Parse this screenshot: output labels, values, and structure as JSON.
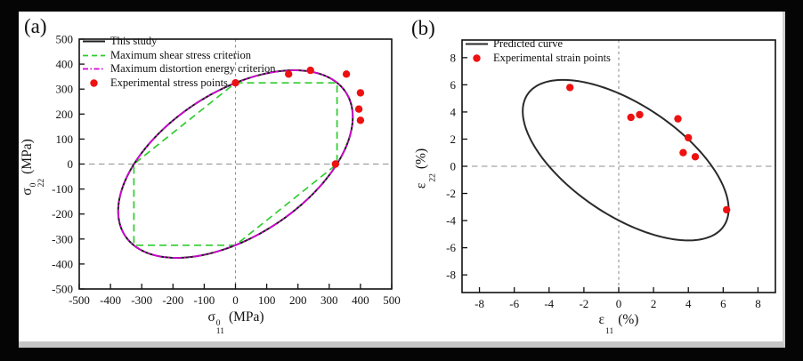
{
  "canvas": {
    "background": "#050505",
    "panel_background": "#ffffff"
  },
  "colors": {
    "axis": "#111111",
    "reference_line": "#8f8f8f",
    "this_study": "#1c1c1c",
    "shear_criterion": "#2ecc2e",
    "distortion_criterion": "#d800d8",
    "experimental_points": "#ee1111",
    "predicted_curve": "#2a2a2a"
  },
  "chart_data": [
    {
      "id": "a",
      "tag": "(a)",
      "type": "line",
      "xlabel": {
        "symbol": "σ",
        "sup": "0",
        "sub": "11",
        "unit": "(MPa)"
      },
      "ylabel": {
        "symbol": "σ",
        "sup": "0",
        "sub": "22",
        "unit": "(MPa)"
      },
      "xlim": [
        -500,
        500
      ],
      "ylim": [
        -500,
        500
      ],
      "xticks": [
        -500,
        -400,
        -300,
        -200,
        -100,
        0,
        100,
        200,
        300,
        400,
        500
      ],
      "yticks": [
        -500,
        -400,
        -300,
        -200,
        -100,
        0,
        100,
        200,
        300,
        400,
        500
      ],
      "grid": false,
      "reference_lines": {
        "vertical_x": 0,
        "horizontal_y": 0
      },
      "legend_position": "top-left-inside",
      "legend": [
        {
          "label": "This study",
          "swatch": "solid",
          "color": "#1c1c1c"
        },
        {
          "label": "Maximum shear stress criterion",
          "swatch": "dashed",
          "color": "#2ecc2e"
        },
        {
          "label": "Maximum distortion energy criterion",
          "swatch": "dashdot",
          "color": "#d800d8"
        },
        {
          "label": "Experimental stress points",
          "swatch": "marker",
          "color": "#ee1111"
        }
      ],
      "series": [
        {
          "name": "Maximum shear stress criterion",
          "type": "polygon",
          "style": "dashed",
          "color": "#2ecc2e",
          "points": [
            [
              0,
              325
            ],
            [
              325,
              325
            ],
            [
              325,
              0
            ],
            [
              0,
              -325
            ],
            [
              -325,
              -325
            ],
            [
              -325,
              0
            ]
          ]
        },
        {
          "name": "This study",
          "type": "ellipse",
          "style": "solid",
          "color": "#1c1c1c",
          "center": [
            0,
            0
          ],
          "semi_major": 460,
          "semi_minor": 265,
          "angle_deg": 45
        },
        {
          "name": "Maximum distortion energy criterion",
          "type": "ellipse",
          "style": "dashdot",
          "color": "#d800d8",
          "center": [
            0,
            0
          ],
          "semi_major": 460,
          "semi_minor": 265,
          "angle_deg": 45
        },
        {
          "name": "Experimental stress points",
          "type": "scatter",
          "style": "marker",
          "color": "#ee1111",
          "points": [
            [
              0,
              325
            ],
            [
              170,
              360
            ],
            [
              240,
              375
            ],
            [
              355,
              360
            ],
            [
              400,
              285
            ],
            [
              395,
              220
            ],
            [
              400,
              175
            ],
            [
              320,
              0
            ]
          ]
        }
      ]
    },
    {
      "id": "b",
      "tag": "(b)",
      "type": "line",
      "xlabel": {
        "symbol": "ε",
        "sup": "",
        "sub": "11",
        "unit": "(%)"
      },
      "ylabel": {
        "symbol": "ε",
        "sup": "",
        "sub": "22",
        "unit": "(%)"
      },
      "xlim": [
        -9,
        9
      ],
      "ylim": [
        -9.3,
        9.3
      ],
      "xticks": [
        -8,
        -6,
        -4,
        -2,
        0,
        2,
        4,
        6,
        8
      ],
      "yticks": [
        -8,
        -6,
        -4,
        -2,
        0,
        2,
        4,
        6,
        8
      ],
      "grid": false,
      "reference_lines": {
        "vertical_x": 0,
        "horizontal_y": 0
      },
      "legend_position": "top-left-inside",
      "legend": [
        {
          "label": "Predicted curve",
          "swatch": "solid",
          "color": "#2a2a2a"
        },
        {
          "label": "Experimental strain points",
          "swatch": "marker",
          "color": "#ee1111"
        }
      ],
      "series": [
        {
          "name": "Predicted curve",
          "type": "ellipse",
          "style": "solid",
          "color": "#2a2a2a",
          "center": [
            0.4,
            0.45
          ],
          "semi_major": 7.5,
          "semi_minor": 3.7,
          "angle_deg": -45
        },
        {
          "name": "Experimental strain points",
          "type": "scatter",
          "style": "marker",
          "color": "#ee1111",
          "points": [
            [
              -2.8,
              5.8
            ],
            [
              0.7,
              3.6
            ],
            [
              1.2,
              3.8
            ],
            [
              3.4,
              3.5
            ],
            [
              4.0,
              2.1
            ],
            [
              3.7,
              1.0
            ],
            [
              4.4,
              0.7
            ],
            [
              6.2,
              -3.2
            ]
          ]
        }
      ]
    }
  ]
}
